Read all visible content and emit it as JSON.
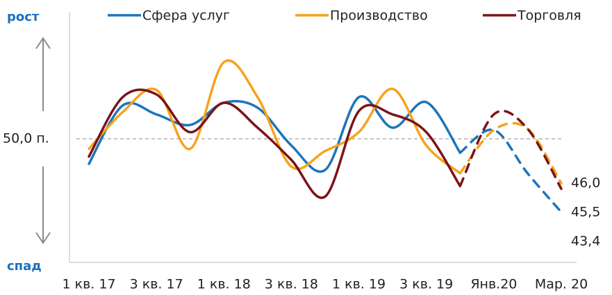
{
  "chart_data": {
    "type": "line",
    "annotations": [
      "рост",
      "спад"
    ],
    "reference": {
      "value": 50,
      "label": "50,0 п."
    },
    "categories": [
      "1 кв. 17",
      null,
      "3 кв. 17",
      null,
      "1 кв. 18",
      null,
      "3 кв. 18",
      null,
      "1 кв. 19",
      null,
      "3 кв. 19",
      null,
      "Янв.20",
      null,
      "Мар. 20"
    ],
    "dashed_from": 11,
    "ylim": [
      39,
      61
    ],
    "series": [
      {
        "name": "Сфера услуг",
        "color": "#1B75BC",
        "values": [
          47.75,
          53,
          52.2,
          51.25,
          53.25,
          52.8,
          49.4,
          47.2,
          53.75,
          51,
          53.3,
          48.75,
          50.8,
          46.9,
          43.4
        ],
        "value_labels": [
          null,
          null,
          null,
          null,
          null,
          null,
          null,
          null,
          null,
          null,
          null,
          null,
          null,
          null,
          "43,4"
        ]
      },
      {
        "name": "Производство",
        "color": "#F7A21B",
        "values": [
          49.1,
          52.4,
          54.4,
          49.1,
          56.9,
          53.75,
          47.5,
          48.9,
          50.6,
          54.5,
          49.4,
          46.9,
          50.8,
          50.9,
          46
        ],
        "value_labels": [
          null,
          null,
          null,
          null,
          null,
          null,
          null,
          null,
          null,
          null,
          null,
          null,
          null,
          null,
          "46,0"
        ]
      },
      {
        "name": "Торговля",
        "color": "#7B1416",
        "values": [
          48.4,
          53.75,
          54,
          50.6,
          53.25,
          51,
          48.1,
          44.8,
          52.5,
          52.2,
          50.6,
          45.75,
          52.2,
          50.9,
          45.5
        ],
        "value_labels": [
          null,
          null,
          null,
          null,
          null,
          null,
          null,
          null,
          null,
          null,
          null,
          null,
          null,
          null,
          "45,5"
        ]
      }
    ]
  }
}
